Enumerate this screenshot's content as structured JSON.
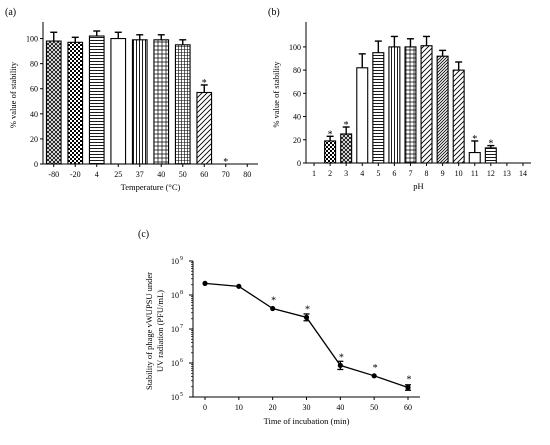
{
  "chart_data": [
    {
      "type": "bar",
      "panel_label": "(a)",
      "xlabel": "Temperature (°C)",
      "ylabel": "% value of stability",
      "ylim": [
        0,
        110
      ],
      "yticks": [
        0,
        20,
        40,
        60,
        80,
        100
      ],
      "categories": [
        "-80",
        "-20",
        "4",
        "25",
        "37",
        "40",
        "50",
        "60",
        "70",
        "80"
      ],
      "values": [
        98,
        97,
        102,
        100,
        99,
        99,
        95,
        57,
        0,
        0
      ],
      "errors": [
        7,
        4,
        4,
        5,
        4,
        4,
        4,
        6,
        0,
        0
      ],
      "significant": [
        false,
        false,
        false,
        false,
        false,
        false,
        false,
        true,
        true,
        false
      ],
      "significance_mark": "*",
      "patterns": [
        "crosshatch",
        "checker",
        "hlines",
        "empty",
        "vlines",
        "grid",
        "dense-grid",
        "diagonal",
        "empty",
        "empty"
      ]
    },
    {
      "type": "bar",
      "panel_label": "(b)",
      "xlabel": "pH",
      "ylabel": "% value of stability",
      "ylim": [
        0,
        118
      ],
      "yticks": [
        0,
        20,
        40,
        60,
        80,
        100
      ],
      "categories": [
        "1",
        "2",
        "3",
        "4",
        "5",
        "6",
        "7",
        "8",
        "9",
        "10",
        "11",
        "12",
        "13",
        "14"
      ],
      "values": [
        0,
        19,
        25,
        82,
        95,
        100,
        100,
        101,
        92,
        80,
        9,
        13,
        0,
        0
      ],
      "errors": [
        0,
        4,
        6,
        12,
        10,
        9,
        7,
        8,
        5,
        7,
        10,
        2,
        0,
        0
      ],
      "significant": [
        false,
        true,
        true,
        false,
        false,
        false,
        false,
        false,
        false,
        false,
        true,
        true,
        false,
        false
      ],
      "significance_mark": "*",
      "patterns": [
        "empty",
        "checker",
        "crosshatch",
        "empty",
        "hlines",
        "vlines",
        "grid",
        "diagonal",
        "dense-diagonal",
        "diagonal",
        "empty",
        "hlines",
        "empty",
        "empty"
      ]
    },
    {
      "type": "line",
      "panel_label": "(c)",
      "xlabel": "Time of incubation (min)",
      "ylabel": "Stability of phage vWUPSU under UV radiation (PFU/mL)",
      "ylabel_lines": [
        "Stability of phage vWUPSU under",
        "UV radiation (PFU/mL)"
      ],
      "yscale": "log",
      "ylim": [
        100000,
        1000000000
      ],
      "ytick_exponents": [
        "5",
        "6",
        "7",
        "8",
        "9"
      ],
      "ytick_base": "10",
      "xlim": [
        0,
        60
      ],
      "xticks": [
        0,
        10,
        20,
        30,
        40,
        50,
        60
      ],
      "x": [
        0,
        10,
        20,
        30,
        40,
        50,
        60
      ],
      "y": [
        220000000,
        180000000,
        40000000,
        22000000,
        850000,
        420000,
        190000
      ],
      "errors_log": [
        0,
        0,
        0,
        0.1,
        0.12,
        0,
        0.08
      ],
      "significant": [
        false,
        false,
        true,
        true,
        true,
        true,
        true
      ],
      "significance_mark": "*"
    }
  ]
}
